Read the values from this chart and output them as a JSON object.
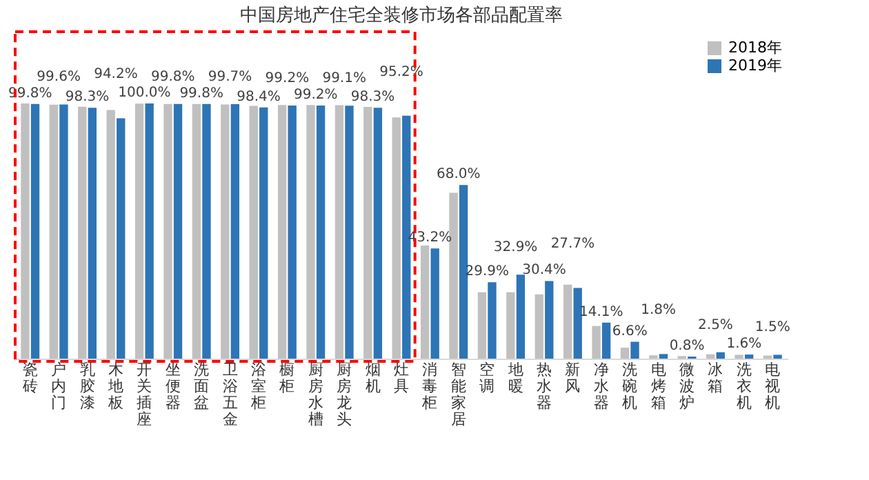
{
  "chart_data": {
    "type": "bar",
    "title": "中国房地产住宅全装修市场各部品配置率",
    "categories": [
      "瓷砖",
      "户内门",
      "乳胶漆",
      "木地板",
      "开关插座",
      "坐便器",
      "洗面盆",
      "卫浴五金",
      "浴室柜",
      "橱柜",
      "厨房水槽",
      "厨房龙头",
      "烟机",
      "灶具",
      "消毒柜",
      "智能家居",
      "空调",
      "地暖",
      "热水器",
      "新风",
      "净水器",
      "洗碗机",
      "电烤箱",
      "微波炉",
      "冰箱",
      "洗衣机",
      "电视机"
    ],
    "series": [
      {
        "name": "2018年",
        "color": "#c0c0c0",
        "values": [
          100.0,
          99.5,
          98.7,
          97.4,
          99.9,
          99.8,
          99.8,
          99.6,
          99.0,
          99.4,
          99.4,
          99.3,
          98.6,
          94.5,
          44.3,
          65.0,
          26.0,
          26.0,
          25.2,
          29.0,
          12.8,
          4.3,
          1.3,
          1.0,
          1.7,
          1.5,
          1.2
        ]
      },
      {
        "name": "2019年",
        "color": "#2e75b6",
        "values": [
          99.8,
          99.6,
          98.3,
          94.2,
          100.0,
          99.8,
          99.8,
          99.7,
          98.4,
          99.2,
          99.2,
          99.1,
          98.3,
          95.2,
          43.2,
          68.0,
          29.9,
          32.9,
          30.4,
          27.7,
          14.1,
          6.6,
          1.8,
          0.8,
          2.5,
          1.6,
          1.5
        ],
        "value_labels": [
          "99.8%",
          "99.6%",
          "98.3%",
          "94.2%",
          "100.0%",
          "99.8%",
          "99.8%",
          "99.7%",
          "98.4%",
          "99.2%",
          "99.2%",
          "99.1%",
          "98.3%",
          "95.2%",
          "43.2%",
          "68.0%",
          "29.9%",
          "32.9%",
          "30.4%",
          "27.7%",
          "14.1%",
          "6.6%",
          "1.8%",
          "0.8%",
          "2.5%",
          "1.6%",
          "1.5%"
        ]
      }
    ],
    "legend": "top right",
    "grid": false
  }
}
